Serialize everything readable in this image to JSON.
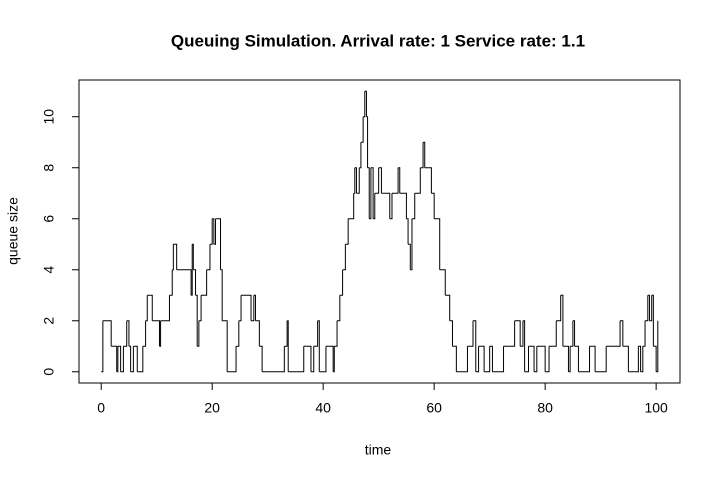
{
  "chart_data": {
    "type": "step",
    "title": "Queuing Simulation. Arrival rate: 1 Service rate: 1.1",
    "xlabel": "time",
    "ylabel": "queue size",
    "color": "#000000",
    "x": [
      0,
      0.3,
      1.8,
      2.8,
      3.0,
      3.5,
      4.0,
      4.6,
      5.0,
      5.3,
      5.8,
      6.5,
      7.5,
      8.0,
      8.3,
      9.2,
      10.5,
      10.7,
      12.3,
      12.8,
      13.0,
      13.6,
      16.2,
      16.4,
      16.6,
      17.0,
      17.3,
      17.6,
      18.0,
      19.0,
      19.6,
      20.0,
      20.3,
      20.6,
      21.5,
      21.8,
      22.7,
      24.3,
      24.8,
      25.2,
      27.0,
      27.5,
      27.8,
      28.5,
      29.0,
      33.0,
      33.5,
      33.7,
      36.5,
      37.8,
      38.3,
      39.0,
      39.3,
      40.5,
      41.8,
      42.0,
      42.5,
      43.0,
      43.5,
      44.0,
      44.5,
      45.5,
      45.7,
      46.0,
      46.5,
      46.8,
      47.2,
      47.5,
      47.8,
      48.0,
      48.3,
      48.6,
      49.0,
      49.3,
      50.0,
      50.5,
      52.0,
      52.4,
      53.5,
      53.8,
      55.0,
      55.3,
      55.7,
      56.0,
      56.5,
      57.5,
      58.0,
      58.3,
      59.5,
      60.0,
      61.0,
      62.0,
      62.8,
      63.3,
      64.0,
      66.0,
      67.0,
      67.5,
      68.0,
      69.0,
      70.0,
      70.5,
      72.5,
      74.5,
      75.5,
      76.0,
      76.3,
      77.0,
      78.0,
      78.5,
      80.0,
      80.7,
      82.0,
      82.8,
      83.2,
      84.2,
      84.5,
      85.0,
      85.3,
      86.0,
      88.0,
      89.0,
      91.0,
      93.5,
      94.0,
      95.0,
      96.8,
      97.2,
      97.6,
      98.0,
      98.5,
      98.8,
      99.2,
      99.5,
      100.0,
      100.3
    ],
    "values": [
      0,
      2,
      1,
      0,
      1,
      0,
      1,
      2,
      1,
      0,
      1,
      0,
      1,
      2,
      3,
      2,
      1,
      2,
      3,
      4,
      5,
      4,
      3,
      5,
      4,
      3,
      1,
      2,
      3,
      4,
      5,
      6,
      5,
      6,
      4,
      2,
      0,
      1,
      2,
      3,
      2,
      3,
      2,
      1,
      0,
      1,
      2,
      0,
      1,
      0,
      1,
      2,
      0,
      1,
      0,
      1,
      2,
      3,
      4,
      5,
      6,
      7,
      8,
      7,
      8,
      9,
      10,
      11,
      10,
      8,
      6,
      8,
      6,
      7,
      8,
      7,
      6,
      7,
      8,
      7,
      6,
      5,
      4,
      6,
      7,
      8,
      9,
      8,
      7,
      6,
      4,
      3,
      2,
      1,
      0,
      1,
      2,
      0,
      1,
      0,
      1,
      0,
      1,
      2,
      1,
      2,
      0,
      1,
      0,
      1,
      0,
      1,
      2,
      3,
      1,
      0,
      1,
      2,
      1,
      0,
      1,
      0,
      1,
      2,
      1,
      0,
      1,
      0,
      1,
      2,
      3,
      2,
      3,
      1,
      0,
      2
    ],
    "xlim": [
      -4,
      104.3
    ],
    "ylim": [
      -0.44,
      11.44
    ],
    "xticks": [
      0,
      20,
      40,
      60,
      80,
      100
    ],
    "yticks": [
      0,
      2,
      4,
      6,
      8,
      10
    ]
  }
}
